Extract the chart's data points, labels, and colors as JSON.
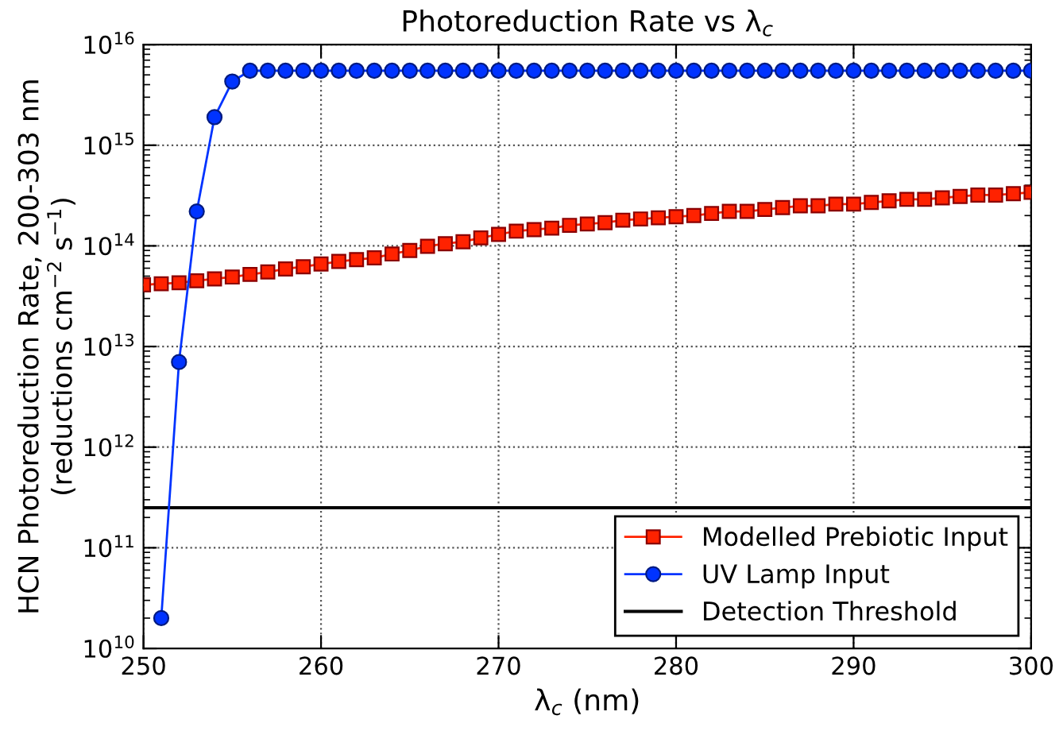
{
  "chart_data": {
    "type": "line",
    "title": "Photoreduction Rate vs λ$_{c}$",
    "xlabel": "λ$_{c}$ (nm)",
    "ylabel": "HCN Photoreduction Rate, 200-303 nm\n(reductions cm$^{−2}$ s$^{−1}$)",
    "x": [
      250,
      251,
      252,
      253,
      254,
      255,
      256,
      257,
      258,
      259,
      260,
      261,
      262,
      263,
      264,
      265,
      266,
      267,
      268,
      269,
      270,
      271,
      272,
      273,
      274,
      275,
      276,
      277,
      278,
      279,
      280,
      281,
      282,
      283,
      284,
      285,
      286,
      287,
      288,
      289,
      290,
      291,
      292,
      293,
      294,
      295,
      296,
      297,
      298,
      299,
      300
    ],
    "series": [
      {
        "name": "Modelled Prebiotic Input",
        "color": "#ff2200",
        "marker": "square",
        "values": [
          41000000000000.0,
          42000000000000.0,
          43000000000000.0,
          45000000000000.0,
          47000000000000.0,
          49000000000000.0,
          52000000000000.0,
          55000000000000.0,
          59000000000000.0,
          62000000000000.0,
          66000000000000.0,
          70000000000000.0,
          73000000000000.0,
          76000000000000.0,
          83000000000000.0,
          90000000000000.0,
          99000000000000.0,
          105000000000000.0,
          110000000000000.0,
          120000000000000.0,
          130000000000000.0,
          140000000000000.0,
          145000000000000.0,
          150000000000000.0,
          160000000000000.0,
          165000000000000.0,
          170000000000000.0,
          180000000000000.0,
          185000000000000.0,
          190000000000000.0,
          195000000000000.0,
          200000000000000.0,
          210000000000000.0,
          220000000000000.0,
          220000000000000.0,
          230000000000000.0,
          240000000000000.0,
          250000000000000.0,
          250000000000000.0,
          260000000000000.0,
          260000000000000.0,
          270000000000000.0,
          280000000000000.0,
          290000000000000.0,
          290000000000000.0,
          300000000000000.0,
          310000000000000.0,
          320000000000000.0,
          320000000000000.0,
          330000000000000.0,
          340000000000000.0
        ]
      },
      {
        "name": "UV Lamp Input",
        "color": "#0033ff",
        "marker": "circle",
        "values": [
          null,
          20000000000.0,
          7000000000000.0,
          220000000000000.0,
          1900000000000000.0,
          4300000000000000.0,
          5500000000000000.0,
          5500000000000000.0,
          5500000000000000.0,
          5500000000000000.0,
          5500000000000000.0,
          5500000000000000.0,
          5500000000000000.0,
          5500000000000000.0,
          5500000000000000.0,
          5500000000000000.0,
          5500000000000000.0,
          5500000000000000.0,
          5500000000000000.0,
          5500000000000000.0,
          5500000000000000.0,
          5500000000000000.0,
          5500000000000000.0,
          5500000000000000.0,
          5500000000000000.0,
          5500000000000000.0,
          5500000000000000.0,
          5500000000000000.0,
          5500000000000000.0,
          5500000000000000.0,
          5500000000000000.0,
          5500000000000000.0,
          5500000000000000.0,
          5500000000000000.0,
          5500000000000000.0,
          5500000000000000.0,
          5500000000000000.0,
          5500000000000000.0,
          5500000000000000.0,
          5500000000000000.0,
          5500000000000000.0,
          5500000000000000.0,
          5500000000000000.0,
          5500000000000000.0,
          5500000000000000.0,
          5500000000000000.0,
          5500000000000000.0,
          5500000000000000.0,
          5500000000000000.0,
          5500000000000000.0,
          5500000000000000.0
        ]
      }
    ],
    "ref_lines": [
      {
        "axis": "y",
        "value": 250000000000.0,
        "label": "Detection Threshold",
        "color": "#000000"
      }
    ],
    "log": "y",
    "xlim": [
      250,
      300
    ],
    "ylim": [
      10000000000.0,
      1e+16
    ],
    "xticks": [
      250,
      260,
      270,
      280,
      290,
      300
    ],
    "yticks": [
      {
        "value": 10000000000.0,
        "label": "10$^{10}$"
      },
      {
        "value": 100000000000.0,
        "label": "10$^{11}$"
      },
      {
        "value": 1000000000000.0,
        "label": "10$^{12}$"
      },
      {
        "value": 10000000000000.0,
        "label": "10$^{13}$"
      },
      {
        "value": 100000000000000.0,
        "label": "10$^{14}$"
      },
      {
        "value": 1000000000000000.0,
        "label": "10$^{15}$"
      },
      {
        "value": 1e+16,
        "label": "10$^{16}$"
      }
    ],
    "grid": true,
    "legend": "bottom right",
    "line_style": "solid"
  }
}
